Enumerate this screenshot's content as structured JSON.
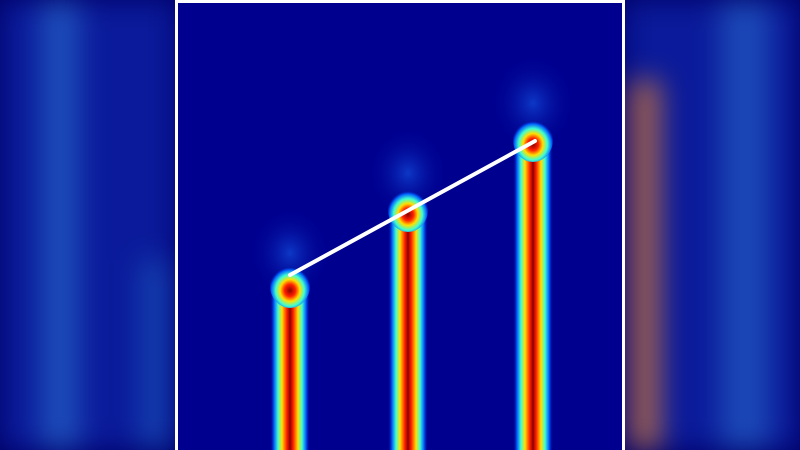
{
  "image": {
    "colors": {
      "background": "#00008f",
      "frame": "#ffffff",
      "trend_line": "#ffffff",
      "core": "#8b0000",
      "hot": "#ff2000",
      "warm": "#ffd000",
      "mid": "#40ffc0",
      "cool": "#00a0ff"
    },
    "side_panels": "blurred-duplicate"
  }
}
